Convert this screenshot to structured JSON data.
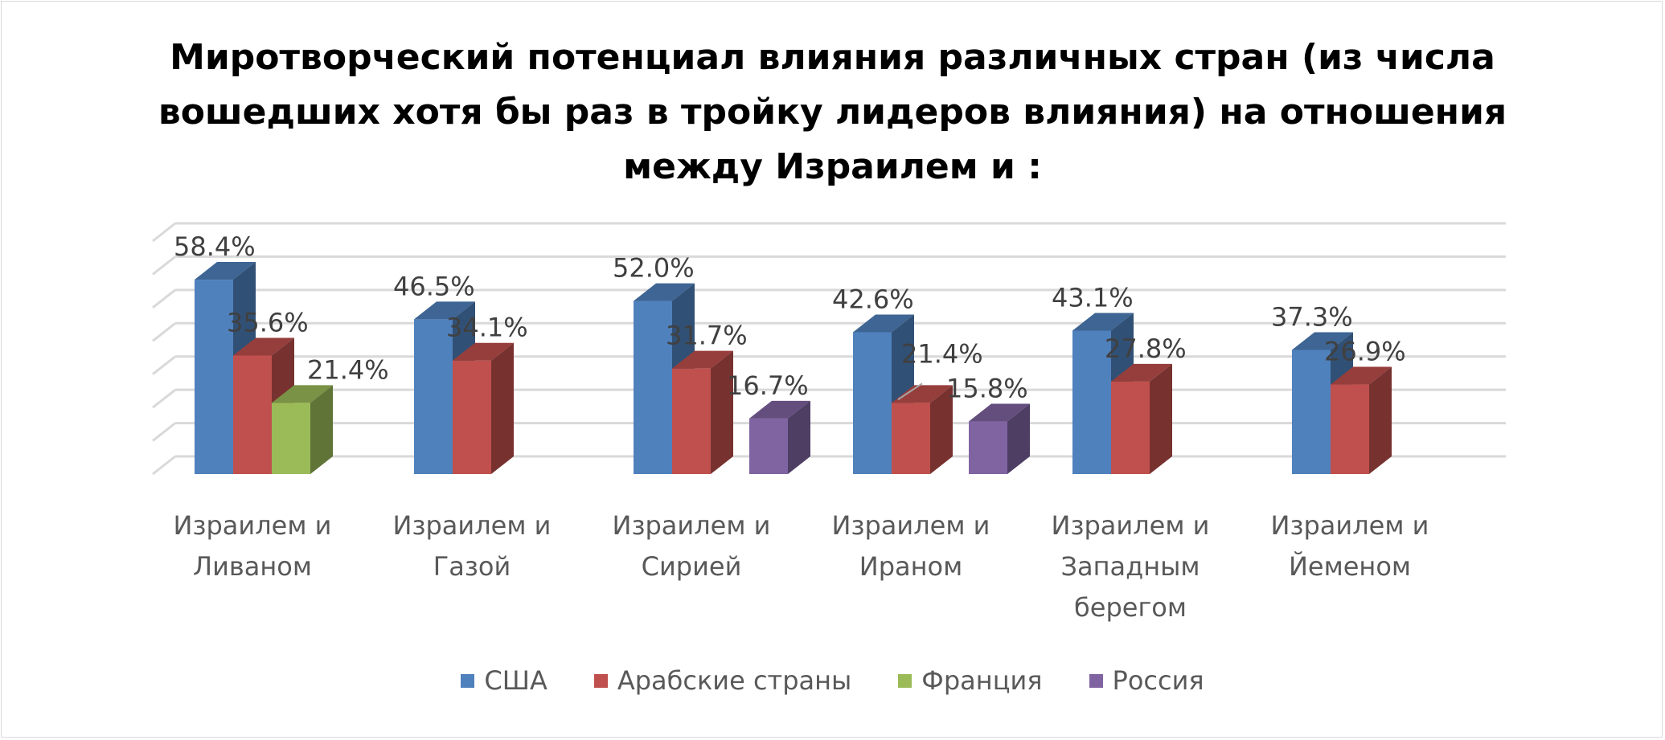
{
  "chart_data": {
    "type": "bar",
    "title_lines": [
      "Миротворческий потенциал влияния различных стран (из числа",
      "вошедших хотя бы раз в тройку лидеров влияния) на отношения",
      "между Израилем и :"
    ],
    "categories": [
      [
        "Израилем и",
        "Ливаном"
      ],
      [
        "Израилем и",
        "Газой"
      ],
      [
        "Израилем и",
        "Сирией"
      ],
      [
        "Израилем и",
        "Ираном"
      ],
      [
        "Израилем и",
        "Западным",
        "берегом"
      ],
      [
        "Израилем и",
        "Йеменом"
      ]
    ],
    "series": [
      {
        "name": "США",
        "color": "#4f81bd",
        "values": [
          58.4,
          46.5,
          52.0,
          42.6,
          43.1,
          37.3
        ],
        "labels": [
          "58.4%",
          "46.5%",
          "52.0%",
          "42.6%",
          "43.1%",
          "37.3%"
        ]
      },
      {
        "name": "Арабские страны",
        "color": "#c0504d",
        "values": [
          35.6,
          34.1,
          31.7,
          21.4,
          27.8,
          26.9
        ],
        "labels": [
          "35.6%",
          "34.1%",
          "31.7%",
          "21.4%",
          "27.8%",
          "26.9%"
        ]
      },
      {
        "name": "Франция",
        "color": "#9bbb59",
        "values": [
          21.4,
          null,
          null,
          null,
          null,
          null
        ],
        "labels": [
          "21.4%",
          "",
          "",
          "",
          "",
          ""
        ]
      },
      {
        "name": "Россия",
        "color": "#8064a2",
        "values": [
          null,
          null,
          16.7,
          15.8,
          null,
          null
        ],
        "labels": [
          "",
          "",
          "16.7%",
          "15.8%",
          "",
          ""
        ]
      }
    ],
    "ylim": [
      0,
      70
    ],
    "grid": true,
    "legend_position": "bottom",
    "style": "3d-clustered-column"
  }
}
